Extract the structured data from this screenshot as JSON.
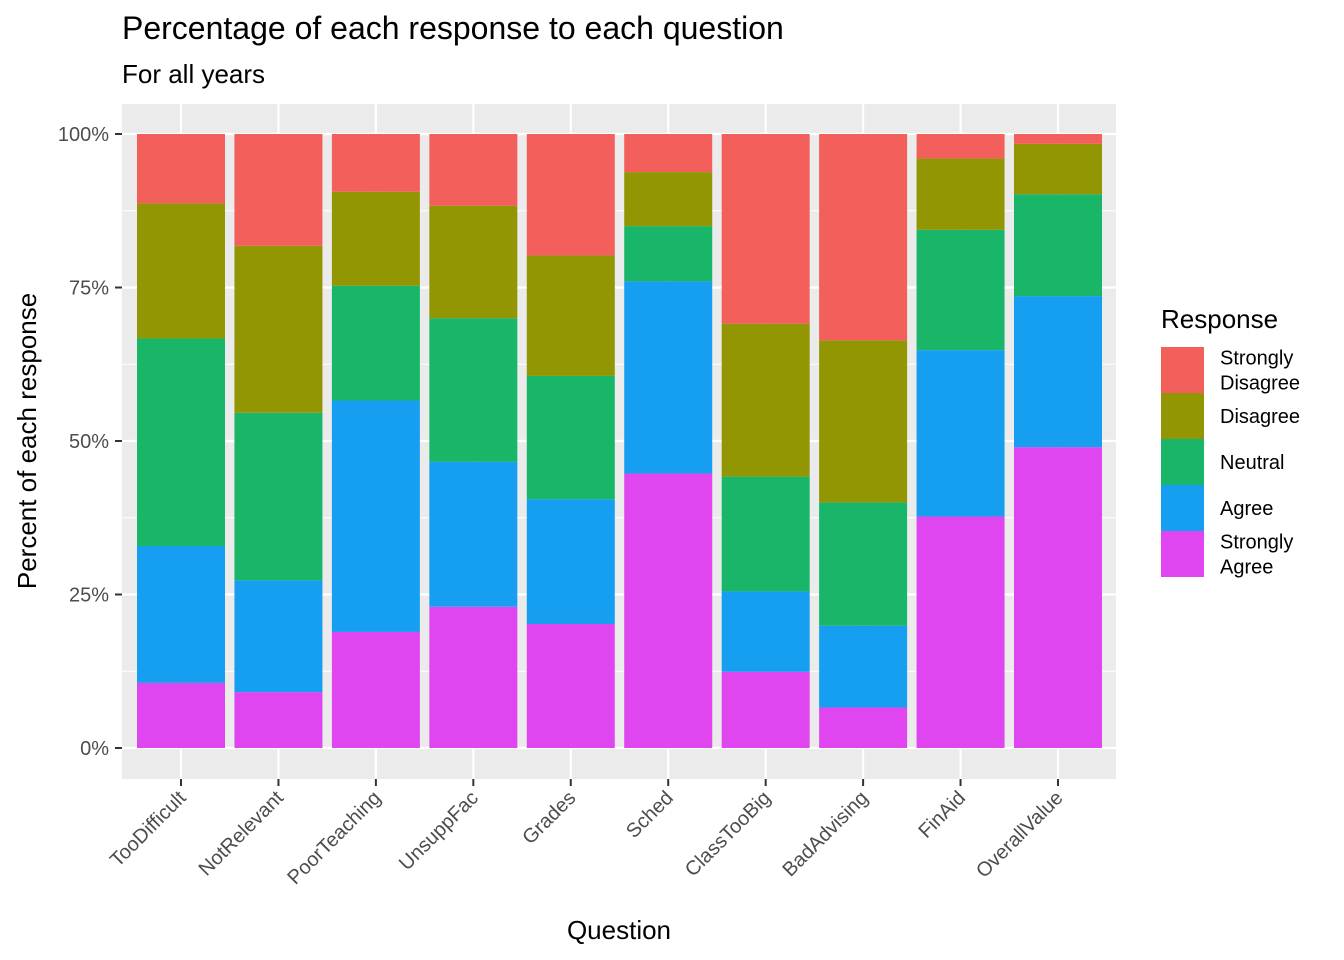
{
  "chart_data": {
    "type": "bar",
    "stacked": true,
    "title": "Percentage of each response to each question",
    "subtitle": "For all years",
    "xlabel": "Question",
    "ylabel": "Percent of each response",
    "ylim": [
      0,
      1
    ],
    "yticks": [
      0,
      0.25,
      0.5,
      0.75,
      1.0
    ],
    "ytick_labels": [
      "0%",
      "25%",
      "50%",
      "75%",
      "100%"
    ],
    "grid": true,
    "legend": {
      "title": "Response",
      "position": "right"
    },
    "categories": [
      "TooDifficult",
      "NotRelevant",
      "PoorTeaching",
      "UnsuppFac",
      "Grades",
      "Sched",
      "ClassTooBig",
      "BadAdvising",
      "FinAid",
      "OverallValue"
    ],
    "series": [
      {
        "name": "Strongly Agree",
        "label_lines": [
          "Strongly",
          "Agree"
        ],
        "color": "#E046F0",
        "values": [
          0.106,
          0.091,
          0.189,
          0.23,
          0.202,
          0.447,
          0.124,
          0.066,
          0.377,
          0.49
        ]
      },
      {
        "name": "Agree",
        "label_lines": [
          "Agree"
        ],
        "color": "#169FF0",
        "values": [
          0.223,
          0.182,
          0.377,
          0.236,
          0.203,
          0.313,
          0.131,
          0.133,
          0.271,
          0.246
        ]
      },
      {
        "name": "Neutral",
        "label_lines": [
          "Neutral"
        ],
        "color": "#19B66A",
        "values": [
          0.338,
          0.273,
          0.187,
          0.234,
          0.201,
          0.09,
          0.187,
          0.201,
          0.196,
          0.166
        ]
      },
      {
        "name": "Disagree",
        "label_lines": [
          "Disagree"
        ],
        "color": "#929603",
        "values": [
          0.22,
          0.272,
          0.153,
          0.183,
          0.196,
          0.088,
          0.249,
          0.264,
          0.116,
          0.082
        ]
      },
      {
        "name": "Strongly Disagree",
        "label_lines": [
          "Strongly",
          "Disagree"
        ],
        "color": "#F35F5B",
        "values": [
          0.113,
          0.182,
          0.094,
          0.117,
          0.198,
          0.062,
          0.309,
          0.336,
          0.04,
          0.016
        ]
      }
    ]
  }
}
